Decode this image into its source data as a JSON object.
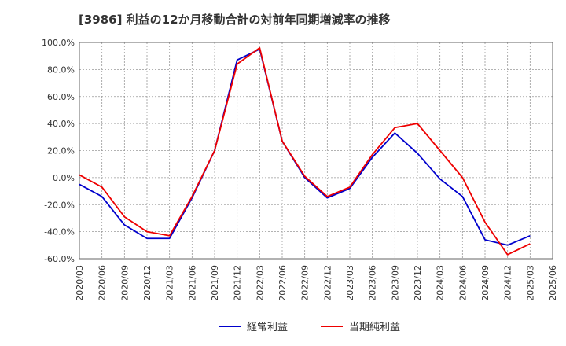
{
  "chart_data": {
    "type": "line",
    "title": "[3986]  利益の12か月移動合計の対前年同期増減率の推移",
    "xlabel": "",
    "ylabel": "",
    "ylim": [
      -60,
      100
    ],
    "yticks": [
      100,
      80,
      60,
      40,
      20,
      0,
      -20,
      -40,
      -60
    ],
    "ytick_labels": [
      "100.0%",
      "80.0%",
      "60.0%",
      "40.0%",
      "20.0%",
      "0.0%",
      "-20.0%",
      "-40.0%",
      "-60.0%"
    ],
    "x": [
      "2020/03",
      "2020/06",
      "2020/09",
      "2020/12",
      "2021/03",
      "2021/06",
      "2021/09",
      "2021/12",
      "2022/03",
      "2022/06",
      "2022/09",
      "2022/12",
      "2023/03",
      "2023/06",
      "2023/09",
      "2023/12",
      "2024/03",
      "2024/06",
      "2024/09",
      "2024/12",
      "2025/03",
      "2025/06"
    ],
    "grid": true,
    "legend_position": "bottom",
    "series": [
      {
        "name": "経常利益",
        "color": "#0000cc",
        "values": [
          -5,
          -14,
          -35,
          -45,
          -45,
          -15,
          20,
          87,
          95,
          27,
          0,
          -15,
          -8,
          15,
          33,
          18,
          -1,
          -14,
          -46,
          -50,
          -43,
          null
        ]
      },
      {
        "name": "当期純利益",
        "color": "#ee0000",
        "values": [
          2,
          -7,
          -29,
          -40,
          -43,
          -14,
          20,
          84,
          96,
          27,
          1,
          -14,
          -7,
          17,
          37,
          40,
          20,
          0,
          -33,
          -57,
          -49,
          null
        ]
      }
    ]
  }
}
